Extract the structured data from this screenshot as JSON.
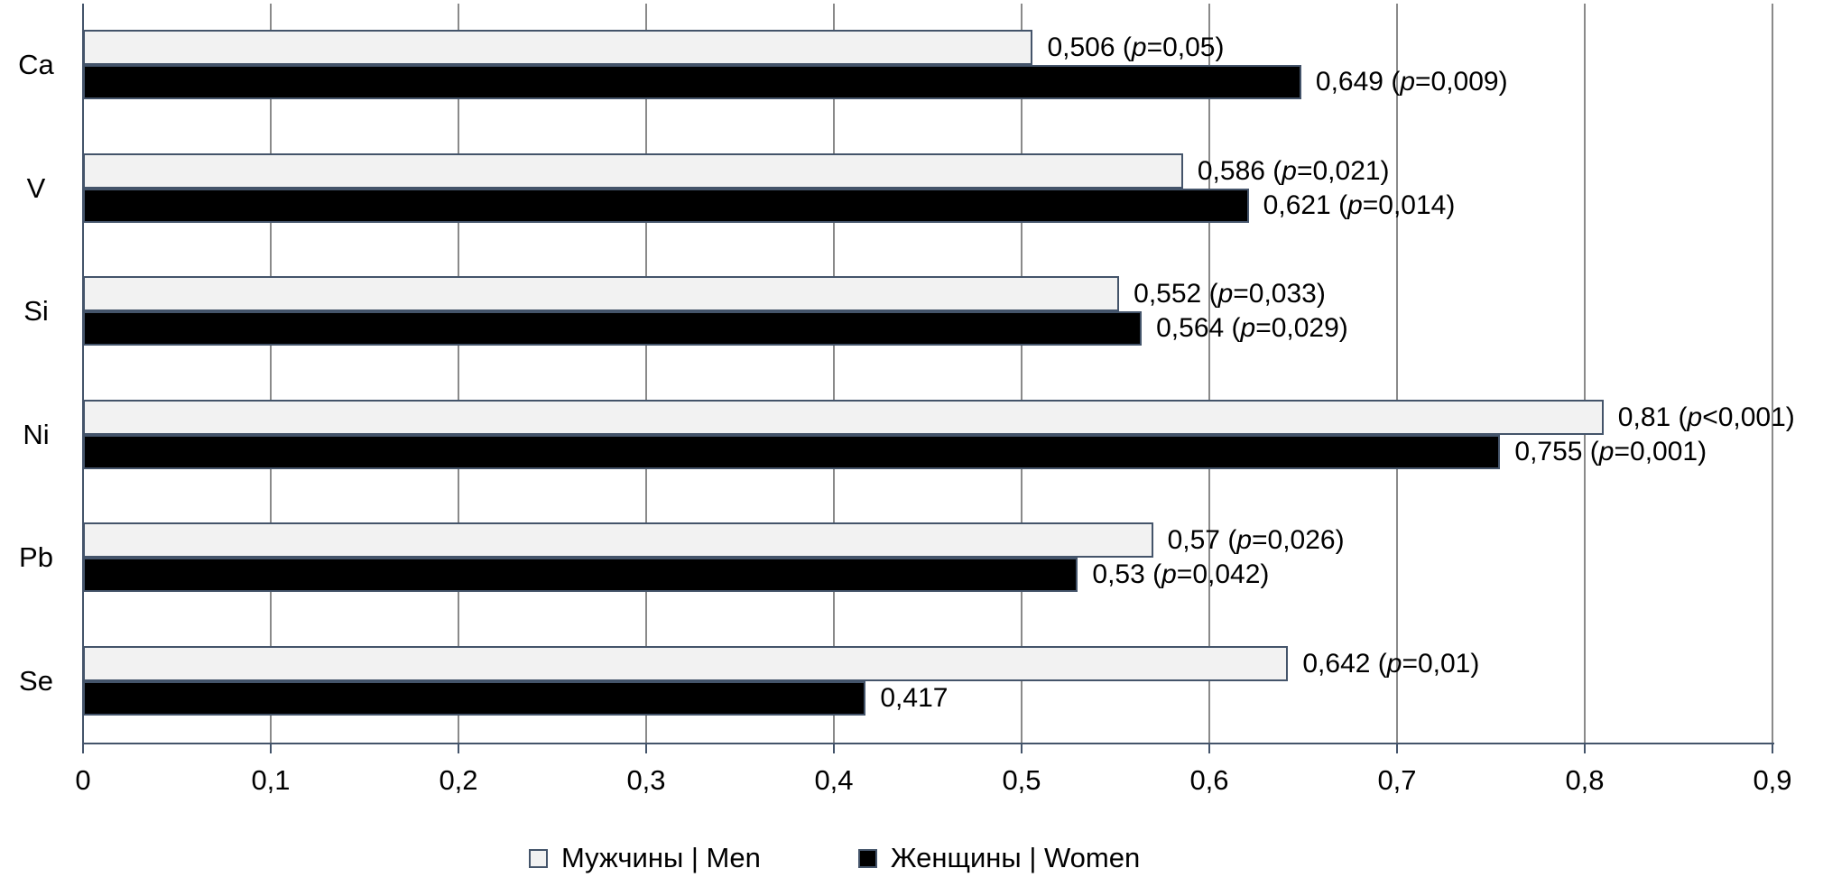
{
  "chart_data": {
    "type": "bar",
    "orientation": "horizontal",
    "title": "",
    "xlabel": "",
    "ylabel": "",
    "categories": [
      "Ca",
      "V",
      "Si",
      "Ni",
      "Pb",
      "Se"
    ],
    "series": [
      {
        "name": "Мужчины | Men",
        "fill": "#F2F2F2",
        "values": [
          0.506,
          0.586,
          0.552,
          0.81,
          0.57,
          0.642
        ],
        "labels": [
          "0,506 (p=0,05)",
          "0,586 (p=0,021)",
          "0,552 (p=0,033)",
          "0,81 (p<0,001)",
          "0,57 (p=0,026)",
          "0,642 (p=0,01)"
        ]
      },
      {
        "name": "Женщины | Women",
        "fill": "#000000",
        "values": [
          0.649,
          0.621,
          0.564,
          0.755,
          0.53,
          0.417
        ],
        "labels": [
          "0,649 (p=0,009)",
          "0,621 (p=0,014)",
          "0,564 (p=0,029)",
          "0,755 (p=0,001)",
          "0,53 (p=0,042)",
          "0,417"
        ]
      }
    ],
    "xlim": [
      0,
      0.9
    ],
    "x_ticks": [
      "0",
      "0,1",
      "0,2",
      "0,3",
      "0,4",
      "0,5",
      "0,6",
      "0,7",
      "0,8",
      "0,9"
    ],
    "grid": true,
    "legend_position": "bottom",
    "decimal_separator": ",",
    "colors": {
      "bar_border": "#44546A",
      "axis": "#44546A",
      "gridline": "#8A8A8A",
      "text": "#000000",
      "background": "#FFFFFF"
    }
  }
}
